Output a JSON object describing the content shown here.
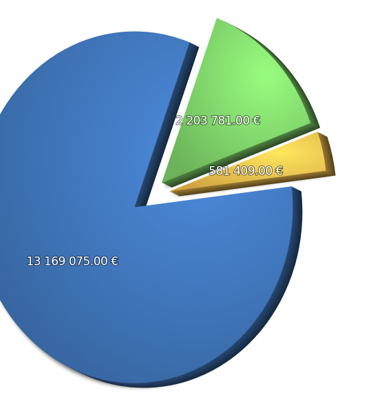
{
  "chart_data": {
    "type": "pie",
    "categories": [
      null,
      null,
      null
    ],
    "values": [
      13169075,
      2203781,
      581409
    ],
    "value_labels": [
      "13 169 075.00 €",
      "2 203 781.00 €",
      "581 409.00 €"
    ],
    "colors": [
      "#3f74b8",
      "#7fd36a",
      "#f5c04e"
    ]
  }
}
